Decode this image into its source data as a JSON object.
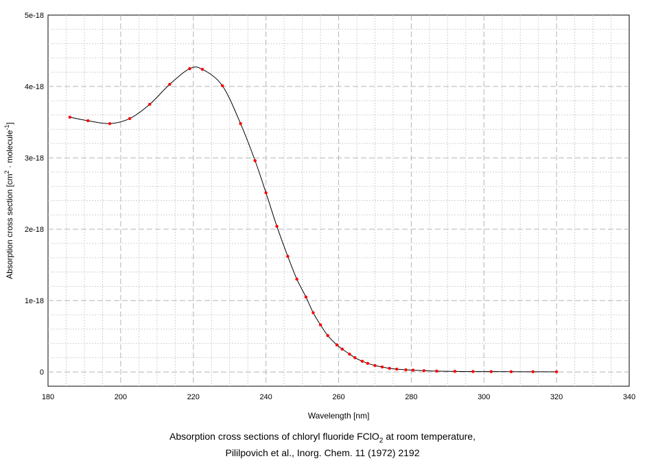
{
  "chart_data": {
    "type": "line",
    "xlabel": "Wavelength [nm]",
    "ylabel_parts": {
      "prefix": "Absorption cross section [cm",
      "sup1": "2",
      "middle": " · molecule",
      "sup2": "-1",
      "suffix": "]"
    },
    "xlim": [
      180,
      340
    ],
    "ylim": [
      -2e-19,
      5e-18
    ],
    "x_ticks": [
      180,
      200,
      220,
      240,
      260,
      280,
      300,
      320,
      340
    ],
    "y_ticks": [
      {
        "value": 0,
        "label": "0"
      },
      {
        "value": 1e-18,
        "label": "1e-18"
      },
      {
        "value": 2e-18,
        "label": "2e-18"
      },
      {
        "value": 3e-18,
        "label": "3e-18"
      },
      {
        "value": 4e-18,
        "label": "4e-18"
      },
      {
        "value": 5e-18,
        "label": "5e-18"
      }
    ],
    "grid": true,
    "line_color": "#000000",
    "marker_color": "#ff0000",
    "series": [
      {
        "x": [
          186,
          191,
          197,
          202.5,
          208,
          213.5,
          219,
          222.5,
          228,
          233,
          237,
          240,
          243,
          246,
          248.5,
          251,
          253,
          255,
          257,
          259.5,
          261,
          263,
          264.5,
          266.5,
          268,
          270,
          272,
          274,
          276,
          278.5,
          280.5,
          283.5,
          287,
          292,
          297,
          302,
          307.5,
          313.5,
          320
        ],
        "y": [
          3.57e-18,
          3.52e-18,
          3.48e-18,
          3.55e-18,
          3.75e-18,
          4.03e-18,
          4.25e-18,
          4.24e-18,
          4.01e-18,
          3.48e-18,
          2.96e-18,
          2.51e-18,
          2.04e-18,
          1.62e-18,
          1.3e-18,
          1.05e-18,
          8.3e-19,
          6.6e-19,
          5.1e-19,
          3.8e-19,
          3.2e-19,
          2.5e-19,
          2e-19,
          1.5e-19,
          1.2e-19,
          9e-20,
          7e-20,
          5e-20,
          4e-20,
          3e-20,
          2.5e-20,
          1.8e-20,
          1.2e-20,
          8e-21,
          6e-21,
          5e-21,
          4e-21,
          3e-21,
          2e-21
        ]
      }
    ]
  },
  "caption": {
    "line1_pre": "Absorption cross sections of chloryl fluoride FClO",
    "line1_sub": "2",
    "line1_post": " at room temperature,",
    "line2": "Pililpovich et al., Inorg. Chem. 11 (1972) 2192"
  }
}
